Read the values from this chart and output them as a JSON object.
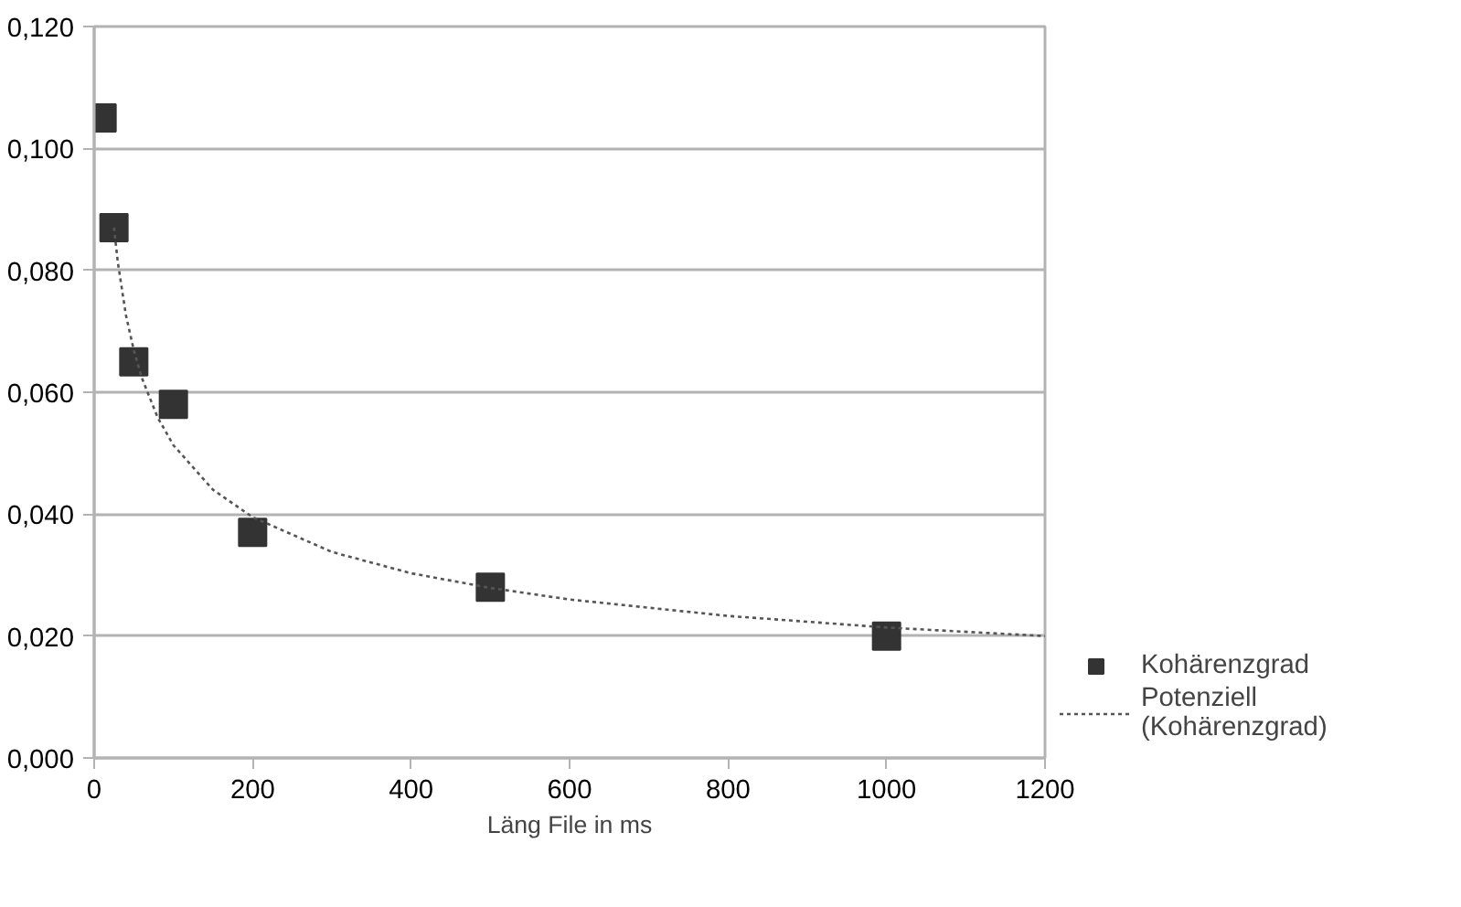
{
  "chart_data": {
    "type": "scatter",
    "xlabel": "Läng File in ms",
    "xlim": [
      0,
      1200
    ],
    "xticks": [
      0,
      200,
      400,
      600,
      800,
      1000,
      1200
    ],
    "ylim": [
      0,
      0.12
    ],
    "yticks": [
      {
        "value": 0,
        "label": "0,000"
      },
      {
        "value": 0.02,
        "label": "0,020"
      },
      {
        "value": 0.04,
        "label": "0,040"
      },
      {
        "value": 0.06,
        "label": "0,060"
      },
      {
        "value": 0.08,
        "label": "0,080"
      },
      {
        "value": 0.1,
        "label": "0,100"
      },
      {
        "value": 0.12,
        "label": "0,120"
      }
    ],
    "grid": "y",
    "legend": "bottom right",
    "series": [
      {
        "name": "Kohärenzgrad",
        "marker": "square",
        "color": "#333333",
        "x": [
          10,
          25,
          50,
          100,
          200,
          500,
          1000
        ],
        "values": [
          0.105,
          0.087,
          0.065,
          0.058,
          0.037,
          0.028,
          0.02
        ]
      },
      {
        "name": "Potenziell (Kohärenzgrad)",
        "type": "line",
        "line_style": "dotted",
        "marker": "none",
        "color": "#555555",
        "x": [
          25,
          30,
          40,
          50,
          60,
          80,
          100,
          150,
          200,
          300,
          400,
          500,
          600,
          800,
          1000,
          1200
        ],
        "values": [
          0.087,
          0.0812,
          0.0727,
          0.0669,
          0.0624,
          0.0559,
          0.0513,
          0.044,
          0.0395,
          0.0338,
          0.0303,
          0.0279,
          0.026,
          0.0233,
          0.0214,
          0.02
        ]
      }
    ]
  }
}
